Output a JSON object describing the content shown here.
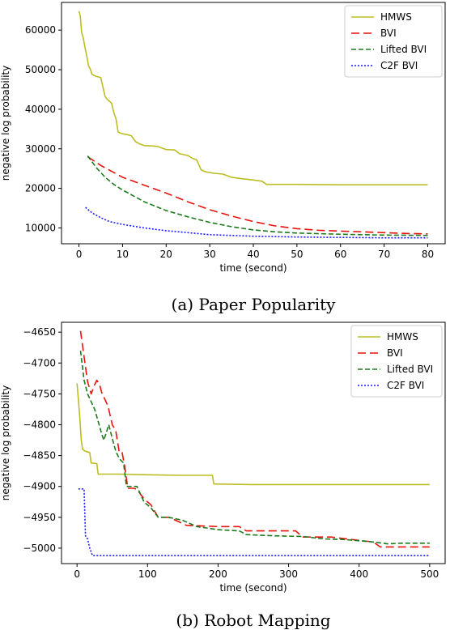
{
  "chart_data": [
    {
      "type": "line",
      "caption": "(a) Paper Popularity",
      "xlabel": "time (second)",
      "ylabel": "negative log probability",
      "xlim": [
        -4,
        84
      ],
      "ylim": [
        6000,
        67000
      ],
      "xticks": [
        0,
        10,
        20,
        30,
        40,
        50,
        60,
        70,
        80
      ],
      "yticks": [
        10000,
        20000,
        30000,
        40000,
        50000,
        60000
      ],
      "legend_position": "top-right",
      "series": [
        {
          "name": "HMWS",
          "color": "#bcbd22",
          "dash": "solid",
          "points": [
            [
              0,
              64800
            ],
            [
              0.3,
              63600
            ],
            [
              0.6,
              59500
            ],
            [
              1,
              58000
            ],
            [
              1.4,
              55500
            ],
            [
              1.8,
              53500
            ],
            [
              2.2,
              51000
            ],
            [
              2.6,
              50200
            ],
            [
              3,
              48800
            ],
            [
              4,
              48300
            ],
            [
              5,
              48000
            ],
            [
              5.5,
              45600
            ],
            [
              6,
              43200
            ],
            [
              6.5,
              42500
            ],
            [
              7,
              42000
            ],
            [
              7.5,
              41500
            ],
            [
              8,
              39200
            ],
            [
              8.5,
              37600
            ],
            [
              9,
              34200
            ],
            [
              10,
              33800
            ],
            [
              11,
              33600
            ],
            [
              12,
              33300
            ],
            [
              13,
              31800
            ],
            [
              14,
              31200
            ],
            [
              15,
              30800
            ],
            [
              17,
              30700
            ],
            [
              18,
              30600
            ],
            [
              19,
              30200
            ],
            [
              20,
              29800
            ],
            [
              22,
              29700
            ],
            [
              23,
              28800
            ],
            [
              25,
              28300
            ],
            [
              26,
              27600
            ],
            [
              27,
              27200
            ],
            [
              28,
              24700
            ],
            [
              29,
              24200
            ],
            [
              31,
              23800
            ],
            [
              33,
              23600
            ],
            [
              35,
              22800
            ],
            [
              37,
              22500
            ],
            [
              40,
              22100
            ],
            [
              42,
              21800
            ],
            [
              43,
              21000
            ],
            [
              50,
              21000
            ],
            [
              60,
              20900
            ],
            [
              70,
              20900
            ],
            [
              80,
              20900
            ]
          ]
        },
        {
          "name": "BVI",
          "color": "#e8120c",
          "dash": "10,5",
          "points": [
            [
              2,
              28000
            ],
            [
              5,
              25800
            ],
            [
              10,
              22800
            ],
            [
              15,
              20800
            ],
            [
              20,
              18800
            ],
            [
              25,
              16600
            ],
            [
              30,
              14600
            ],
            [
              35,
              13000
            ],
            [
              40,
              11600
            ],
            [
              45,
              10500
            ],
            [
              50,
              9800
            ],
            [
              55,
              9400
            ],
            [
              60,
              9200
            ],
            [
              65,
              9000
            ],
            [
              70,
              8800
            ],
            [
              75,
              8600
            ],
            [
              80,
              8500
            ]
          ]
        },
        {
          "name": "Lifted BVI",
          "color": "#1c7a1c",
          "dash": "6,3",
          "points": [
            [
              2,
              28200
            ],
            [
              4,
              25200
            ],
            [
              6,
              22800
            ],
            [
              8,
              21000
            ],
            [
              10,
              19600
            ],
            [
              15,
              16600
            ],
            [
              20,
              14400
            ],
            [
              25,
              12800
            ],
            [
              30,
              11400
            ],
            [
              35,
              10300
            ],
            [
              40,
              9500
            ],
            [
              45,
              9000
            ],
            [
              50,
              8700
            ],
            [
              60,
              8400
            ],
            [
              70,
              8200
            ],
            [
              80,
              8100
            ]
          ]
        },
        {
          "name": "C2F BVI",
          "color": "#1a1aff",
          "dash": "2,2",
          "points": [
            [
              1.5,
              15200
            ],
            [
              3,
              13800
            ],
            [
              5,
              12600
            ],
            [
              7,
              11600
            ],
            [
              10,
              10900
            ],
            [
              15,
              10000
            ],
            [
              20,
              9300
            ],
            [
              25,
              8800
            ],
            [
              30,
              8300
            ],
            [
              40,
              7900
            ],
            [
              50,
              7700
            ],
            [
              60,
              7600
            ],
            [
              70,
              7500
            ],
            [
              80,
              7500
            ]
          ]
        }
      ]
    },
    {
      "type": "line",
      "caption": "(b) Robot Mapping",
      "xlabel": "time (second)",
      "ylabel": "negative log probability",
      "xlim": [
        -22,
        522
      ],
      "ylim": [
        -5025,
        -4634
      ],
      "xticks": [
        0,
        100,
        200,
        300,
        400,
        500
      ],
      "yticks": [
        -4650,
        -4700,
        -4750,
        -4800,
        -4850,
        -4900,
        -4950,
        -5000
      ],
      "legend_position": "top-right",
      "series": [
        {
          "name": "HMWS",
          "color": "#bcbd22",
          "dash": "solid",
          "points": [
            [
              0,
              -4733
            ],
            [
              2,
              -4760
            ],
            [
              4,
              -4790
            ],
            [
              6,
              -4825
            ],
            [
              8,
              -4840
            ],
            [
              12,
              -4843
            ],
            [
              18,
              -4845
            ],
            [
              20,
              -4862
            ],
            [
              28,
              -4863
            ],
            [
              30,
              -4880
            ],
            [
              60,
              -4880
            ],
            [
              100,
              -4881
            ],
            [
              150,
              -4882
            ],
            [
              192,
              -4882
            ],
            [
              194,
              -4896
            ],
            [
              250,
              -4897
            ],
            [
              300,
              -4897
            ],
            [
              400,
              -4897
            ],
            [
              500,
              -4897
            ]
          ]
        },
        {
          "name": "BVI",
          "color": "#e8120c",
          "dash": "10,5",
          "points": [
            [
              5,
              -4648
            ],
            [
              10,
              -4690
            ],
            [
              15,
              -4730
            ],
            [
              20,
              -4750
            ],
            [
              25,
              -4735
            ],
            [
              28,
              -4728
            ],
            [
              32,
              -4735
            ],
            [
              35,
              -4748
            ],
            [
              40,
              -4760
            ],
            [
              44,
              -4770
            ],
            [
              50,
              -4800
            ],
            [
              55,
              -4810
            ],
            [
              60,
              -4845
            ],
            [
              64,
              -4845
            ],
            [
              68,
              -4870
            ],
            [
              72,
              -4903
            ],
            [
              80,
              -4903
            ],
            [
              85,
              -4905
            ],
            [
              95,
              -4920
            ],
            [
              105,
              -4930
            ],
            [
              115,
              -4950
            ],
            [
              130,
              -4950
            ],
            [
              140,
              -4955
            ],
            [
              155,
              -4963
            ],
            [
              200,
              -4965
            ],
            [
              230,
              -4965
            ],
            [
              240,
              -4972
            ],
            [
              280,
              -4972
            ],
            [
              310,
              -4972
            ],
            [
              320,
              -4982
            ],
            [
              360,
              -4982
            ],
            [
              390,
              -4986
            ],
            [
              420,
              -4990
            ],
            [
              430,
              -4998
            ],
            [
              460,
              -4998
            ],
            [
              500,
              -4998
            ]
          ]
        },
        {
          "name": "Lifted BVI",
          "color": "#1c7a1c",
          "dash": "6,3",
          "points": [
            [
              5,
              -4680
            ],
            [
              10,
              -4728
            ],
            [
              15,
              -4750
            ],
            [
              25,
              -4775
            ],
            [
              35,
              -4815
            ],
            [
              38,
              -4825
            ],
            [
              45,
              -4800
            ],
            [
              50,
              -4822
            ],
            [
              55,
              -4843
            ],
            [
              60,
              -4855
            ],
            [
              66,
              -4862
            ],
            [
              70,
              -4900
            ],
            [
              85,
              -4900
            ],
            [
              95,
              -4925
            ],
            [
              105,
              -4935
            ],
            [
              115,
              -4950
            ],
            [
              130,
              -4950
            ],
            [
              150,
              -4955
            ],
            [
              170,
              -4965
            ],
            [
              200,
              -4970
            ],
            [
              230,
              -4972
            ],
            [
              240,
              -4978
            ],
            [
              280,
              -4980
            ],
            [
              320,
              -4981
            ],
            [
              350,
              -4985
            ],
            [
              380,
              -4986
            ],
            [
              420,
              -4990
            ],
            [
              440,
              -4993
            ],
            [
              460,
              -4992
            ],
            [
              500,
              -4992
            ]
          ]
        },
        {
          "name": "C2F BVI",
          "color": "#1a1aff",
          "dash": "2,2",
          "points": [
            [
              2,
              -4904
            ],
            [
              10,
              -4904
            ],
            [
              12,
              -4980
            ],
            [
              15,
              -4985
            ],
            [
              18,
              -5000
            ],
            [
              22,
              -5012
            ],
            [
              60,
              -5012
            ],
            [
              200,
              -5012
            ],
            [
              300,
              -5012
            ],
            [
              400,
              -5012
            ],
            [
              500,
              -5012
            ]
          ]
        }
      ]
    }
  ]
}
